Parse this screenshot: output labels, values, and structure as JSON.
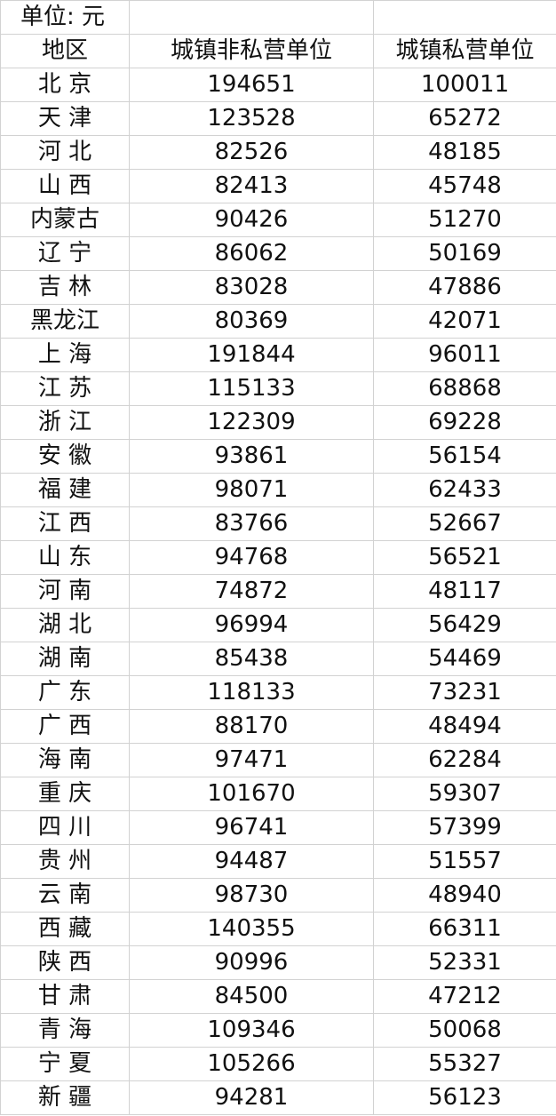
{
  "table": {
    "unit_label": "单位: 元",
    "headers": [
      "地区",
      "城镇非私营单位",
      "城镇私营单位"
    ],
    "rows": [
      [
        "北 京",
        "194651",
        "100011"
      ],
      [
        "天 津",
        "123528",
        "65272"
      ],
      [
        "河 北",
        "82526",
        "48185"
      ],
      [
        "山 西",
        "82413",
        "45748"
      ],
      [
        "内蒙古",
        "90426",
        "51270"
      ],
      [
        "辽 宁",
        "86062",
        "50169"
      ],
      [
        "吉 林",
        "83028",
        "47886"
      ],
      [
        "黑龙江",
        "80369",
        "42071"
      ],
      [
        "上 海",
        "191844",
        "96011"
      ],
      [
        "江 苏",
        "115133",
        "68868"
      ],
      [
        "浙 江",
        "122309",
        "69228"
      ],
      [
        "安 徽",
        "93861",
        "56154"
      ],
      [
        "福 建",
        "98071",
        "62433"
      ],
      [
        "江 西",
        "83766",
        "52667"
      ],
      [
        "山 东",
        "94768",
        "56521"
      ],
      [
        "河 南",
        "74872",
        "48117"
      ],
      [
        "湖 北",
        "96994",
        "56429"
      ],
      [
        "湖 南",
        "85438",
        "54469"
      ],
      [
        "广 东",
        "118133",
        "73231"
      ],
      [
        "广 西",
        "88170",
        "48494"
      ],
      [
        "海 南",
        "97471",
        "62284"
      ],
      [
        "重 庆",
        "101670",
        "59307"
      ],
      [
        "四 川",
        "96741",
        "57399"
      ],
      [
        "贵 州",
        "94487",
        "51557"
      ],
      [
        "云 南",
        "98730",
        "48940"
      ],
      [
        "西 藏",
        "140355",
        "66311"
      ],
      [
        "陕 西",
        "90996",
        "52331"
      ],
      [
        "甘 肃",
        "84500",
        "47212"
      ],
      [
        "青 海",
        "109346",
        "50068"
      ],
      [
        "宁 夏",
        "105266",
        "55327"
      ],
      [
        "新 疆",
        "94281",
        "56123"
      ]
    ]
  }
}
